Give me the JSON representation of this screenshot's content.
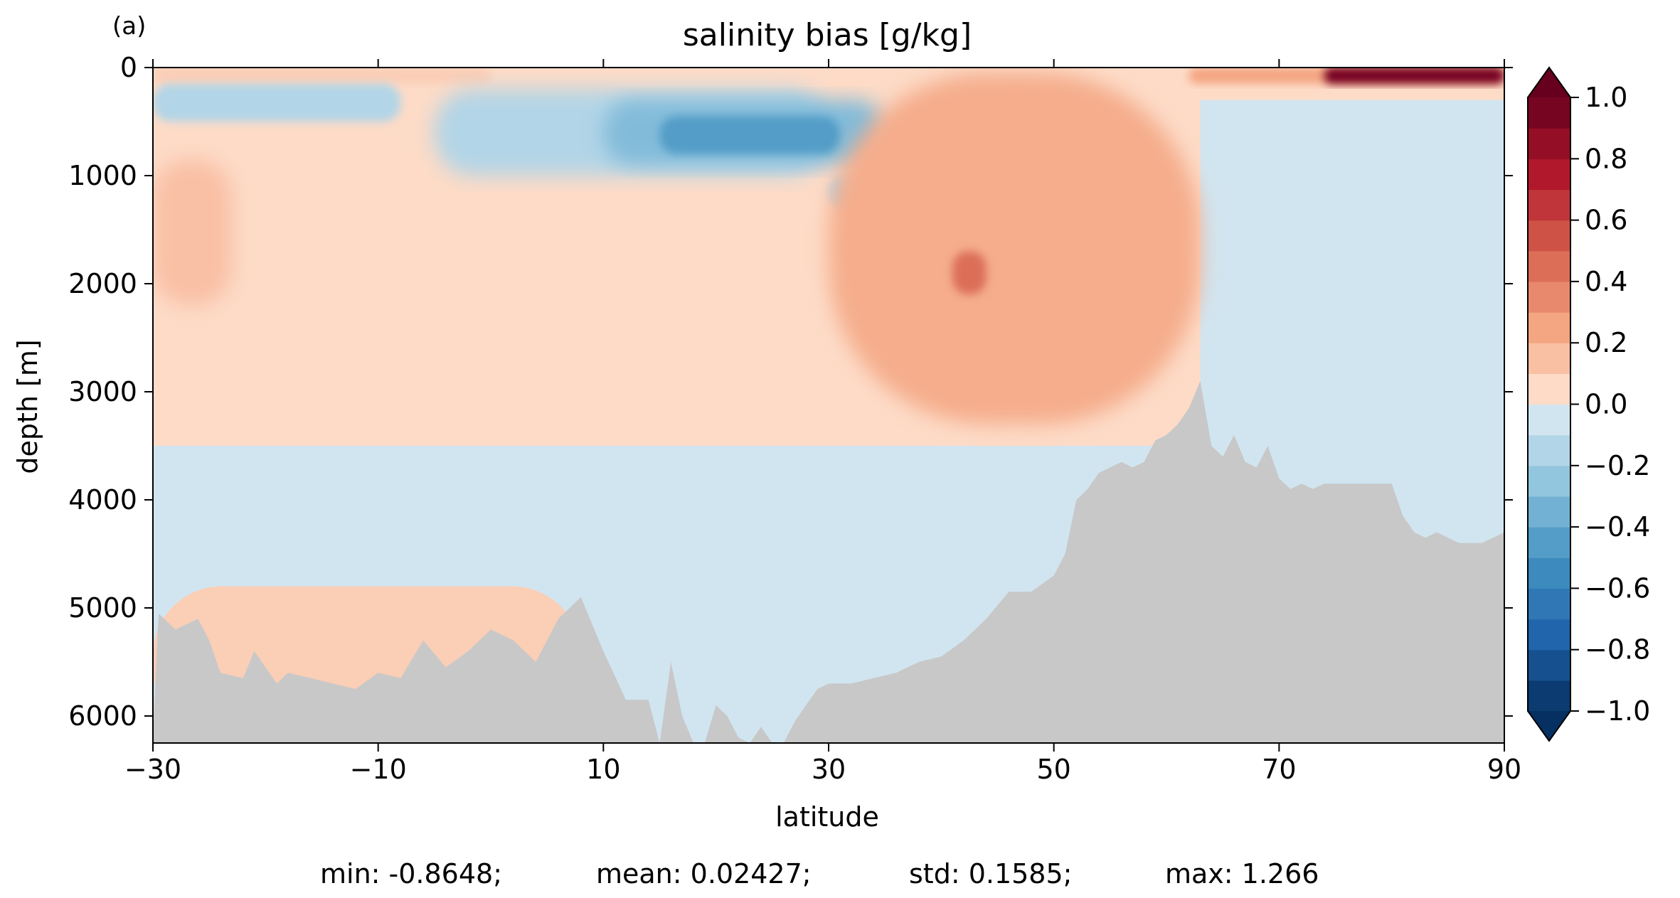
{
  "chart_data": {
    "type": "heatmap",
    "panel_label": "(a)",
    "title": "salinity bias [g/kg]",
    "xlabel": "latitude",
    "ylabel": "depth [m]",
    "xlim": [
      -30,
      90
    ],
    "ylim": [
      6250,
      0
    ],
    "x_ticks": [
      -30,
      -10,
      10,
      30,
      50,
      70,
      90
    ],
    "x_tick_labels": [
      "−30",
      "−10",
      "10",
      "30",
      "50",
      "70",
      "90"
    ],
    "y_ticks": [
      0,
      1000,
      2000,
      3000,
      4000,
      5000,
      6000
    ],
    "y_tick_labels": [
      "0",
      "1000",
      "2000",
      "3000",
      "4000",
      "5000",
      "6000"
    ],
    "colorbar": {
      "cmap": "RdBu_r",
      "vmin": -1.0,
      "vmax": 1.0,
      "levels": 20,
      "extend": "both",
      "ticks": [
        1.0,
        0.8,
        0.6,
        0.4,
        0.2,
        0.0,
        -0.2,
        -0.4,
        -0.6,
        -0.8,
        -1.0
      ],
      "tick_labels": [
        "1.0",
        "0.8",
        "0.6",
        "0.4",
        "0.2",
        "0.0",
        "−0.2",
        "−0.4",
        "−0.6",
        "−0.8",
        "−1.0"
      ]
    },
    "bathymetry_fill": "#c8c8c8",
    "features": [
      {
        "lat": [
          -30,
          90
        ],
        "depth": [
          0,
          3500
        ],
        "bias": 0.05
      },
      {
        "lat": [
          -30,
          90
        ],
        "depth": [
          3500,
          6250
        ],
        "bias": -0.05
      },
      {
        "lat": [
          -30,
          8
        ],
        "depth": [
          4800,
          6200
        ],
        "bias": 0.1
      },
      {
        "lat": [
          63,
          90
        ],
        "depth": [
          300,
          6250
        ],
        "bias": -0.05
      },
      {
        "lat": [
          -30,
          0
        ],
        "depth": [
          0,
          150
        ],
        "bias": 0.1
      },
      {
        "lat": [
          -30,
          -8
        ],
        "depth": [
          150,
          500
        ],
        "bias": -0.15
      },
      {
        "lat": [
          -5,
          30
        ],
        "depth": [
          200,
          1000
        ],
        "bias": -0.15
      },
      {
        "lat": [
          10,
          35
        ],
        "depth": [
          300,
          900
        ],
        "bias": -0.3
      },
      {
        "lat": [
          15,
          31
        ],
        "depth": [
          450,
          800
        ],
        "bias": -0.45
      },
      {
        "lat": [
          30,
          43
        ],
        "depth": [
          1000,
          1300
        ],
        "bias": -0.15
      },
      {
        "lat": [
          -30,
          -23
        ],
        "depth": [
          850,
          2200
        ],
        "bias": 0.15
      },
      {
        "lat": [
          30,
          63
        ],
        "depth": [
          50,
          3300
        ],
        "bias": 0.22
      },
      {
        "lat": [
          41,
          44
        ],
        "depth": [
          1700,
          2100
        ],
        "bias": 0.45
      },
      {
        "lat": [
          62,
          90
        ],
        "depth": [
          0,
          150
        ],
        "bias": 0.25
      },
      {
        "lat": [
          74,
          90
        ],
        "depth": [
          0,
          150
        ],
        "bias": 0.95
      }
    ],
    "bottom_profile": {
      "lat": [
        -30,
        -29.5,
        -28,
        -26,
        -25,
        -24,
        -22,
        -21,
        -19,
        -18,
        -16,
        -14,
        -12,
        -10,
        -8,
        -6,
        -4,
        -2,
        0,
        2,
        4,
        6,
        8,
        10,
        12,
        14,
        15,
        16,
        17,
        18,
        19,
        20,
        21,
        22,
        23,
        24,
        25,
        26,
        27,
        28,
        29,
        30,
        32,
        34,
        36,
        38,
        40,
        42,
        44,
        46,
        48,
        50,
        51,
        52,
        53,
        54,
        55,
        56,
        57,
        58,
        59,
        60,
        61,
        62,
        63,
        64,
        65,
        66,
        67,
        68,
        69,
        70,
        71,
        72,
        73,
        74,
        75,
        76,
        77,
        78,
        79,
        80,
        81,
        82,
        83,
        84,
        85,
        86,
        87,
        88,
        89,
        90
      ],
      "depth": [
        6200,
        5050,
        5200,
        5100,
        5300,
        5600,
        5650,
        5400,
        5700,
        5600,
        5650,
        5700,
        5750,
        5600,
        5650,
        5300,
        5550,
        5400,
        5200,
        5300,
        5500,
        5100,
        4900,
        5400,
        5850,
        5850,
        6250,
        5500,
        6000,
        6250,
        6250,
        5900,
        6000,
        6200,
        6250,
        6100,
        6250,
        6250,
        6050,
        5900,
        5750,
        5700,
        5700,
        5650,
        5600,
        5500,
        5450,
        5300,
        5100,
        4850,
        4850,
        4700,
        4500,
        4000,
        3900,
        3750,
        3700,
        3650,
        3700,
        3650,
        3450,
        3400,
        3300,
        3150,
        2900,
        3500,
        3600,
        3400,
        3650,
        3700,
        3500,
        3800,
        3900,
        3850,
        3900,
        3850,
        3850,
        3850,
        3850,
        3850,
        3850,
        3850,
        4150,
        4300,
        4350,
        4300,
        4350,
        4400,
        4400,
        4400,
        4350,
        4300
      ]
    }
  },
  "stats": {
    "min": "min: -0.8648;",
    "mean": "mean: 0.02427;",
    "std": "std: 0.1585;",
    "max": "max: 1.266"
  }
}
